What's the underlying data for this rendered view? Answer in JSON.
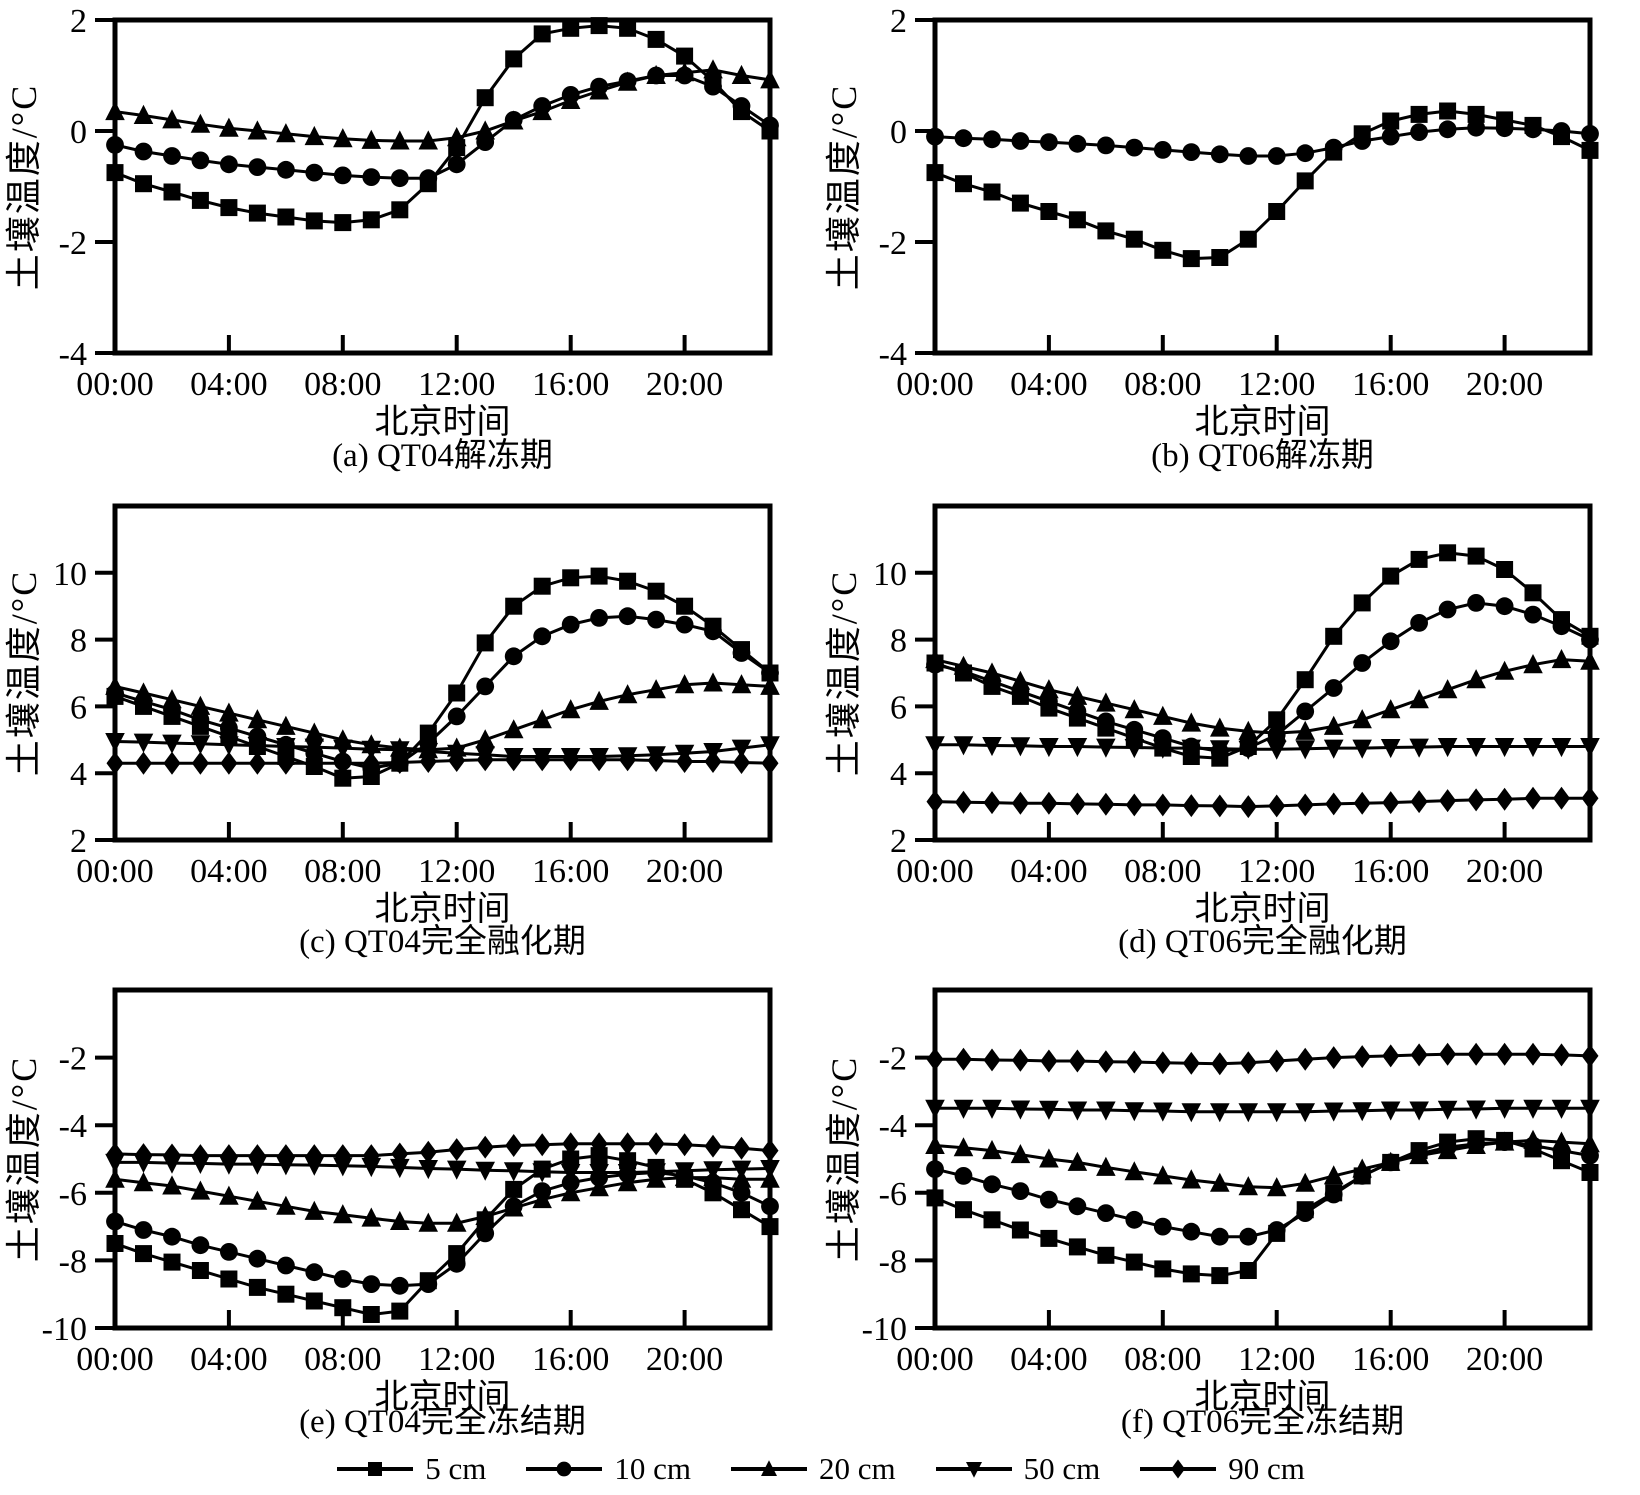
{
  "figure": {
    "background": "#ffffff",
    "ink_color": "#000000",
    "ylabel": "土壤温度/°C",
    "xlabel": "北京时间",
    "legend": [
      {
        "label": "5 cm",
        "marker": "square"
      },
      {
        "label": "10 cm",
        "marker": "circle"
      },
      {
        "label": "20 cm",
        "marker": "triangle-up"
      },
      {
        "label": "50 cm",
        "marker": "triangle-down"
      },
      {
        "label": "90 cm",
        "marker": "diamond"
      }
    ]
  },
  "chart_data": [
    {
      "id": "a",
      "type": "line",
      "title": "(a) QT04解冻期",
      "xlabel": "北京时间",
      "ylabel": "土壤温度/°C",
      "x_unit": "hour",
      "xlim": [
        0,
        23
      ],
      "x_tick_hours": [
        0,
        4,
        8,
        12,
        16,
        20
      ],
      "x_tick_labels": [
        "00:00",
        "04:00",
        "08:00",
        "12:00",
        "16:00",
        "20:00"
      ],
      "ylim": [
        -4,
        2
      ],
      "yticks": [
        2,
        0,
        -2,
        -4
      ],
      "series": [
        {
          "name": "5 cm",
          "marker": "square",
          "values": [
            -0.75,
            -0.95,
            -1.1,
            -1.25,
            -1.38,
            -1.48,
            -1.55,
            -1.62,
            -1.65,
            -1.6,
            -1.42,
            -0.95,
            -0.3,
            0.6,
            1.3,
            1.75,
            1.85,
            1.9,
            1.85,
            1.65,
            1.35,
            0.9,
            0.35,
            0.0
          ]
        },
        {
          "name": "10 cm",
          "marker": "circle",
          "values": [
            -0.25,
            -0.37,
            -0.45,
            -0.53,
            -0.6,
            -0.65,
            -0.7,
            -0.75,
            -0.8,
            -0.83,
            -0.85,
            -0.85,
            -0.6,
            -0.2,
            0.2,
            0.45,
            0.65,
            0.8,
            0.9,
            1.0,
            1.0,
            0.8,
            0.45,
            0.1
          ]
        },
        {
          "name": "20 cm",
          "marker": "triangle-up",
          "values": [
            0.35,
            0.28,
            0.2,
            0.12,
            0.05,
            0.0,
            -0.05,
            -0.1,
            -0.14,
            -0.17,
            -0.18,
            -0.18,
            -0.12,
            0.0,
            0.18,
            0.35,
            0.55,
            0.72,
            0.88,
            1.0,
            1.05,
            1.1,
            1.0,
            0.92
          ]
        }
      ]
    },
    {
      "id": "b",
      "type": "line",
      "title": "(b) QT06解冻期",
      "xlabel": "北京时间",
      "ylabel": "土壤温度/°C",
      "x_unit": "hour",
      "xlim": [
        0,
        23
      ],
      "x_tick_hours": [
        0,
        4,
        8,
        12,
        16,
        20
      ],
      "x_tick_labels": [
        "00:00",
        "04:00",
        "08:00",
        "12:00",
        "16:00",
        "20:00"
      ],
      "ylim": [
        -4,
        2
      ],
      "yticks": [
        2,
        0,
        -2,
        -4
      ],
      "series": [
        {
          "name": "5 cm",
          "marker": "square",
          "values": [
            -0.75,
            -0.95,
            -1.1,
            -1.3,
            -1.45,
            -1.6,
            -1.8,
            -1.95,
            -2.15,
            -2.3,
            -2.28,
            -1.95,
            -1.45,
            -0.9,
            -0.38,
            -0.05,
            0.18,
            0.3,
            0.36,
            0.3,
            0.2,
            0.1,
            -0.1,
            -0.35
          ]
        },
        {
          "name": "10 cm",
          "marker": "circle",
          "values": [
            -0.1,
            -0.13,
            -0.15,
            -0.18,
            -0.2,
            -0.23,
            -0.26,
            -0.3,
            -0.34,
            -0.38,
            -0.42,
            -0.45,
            -0.45,
            -0.4,
            -0.3,
            -0.18,
            -0.1,
            -0.02,
            0.03,
            0.06,
            0.05,
            0.03,
            0.0,
            -0.05
          ]
        }
      ]
    },
    {
      "id": "c",
      "type": "line",
      "title": "(c) QT04完全融化期",
      "xlabel": "北京时间",
      "ylabel": "土壤温度/°C",
      "x_unit": "hour",
      "xlim": [
        0,
        23
      ],
      "x_tick_hours": [
        0,
        4,
        8,
        12,
        16,
        20
      ],
      "x_tick_labels": [
        "00:00",
        "04:00",
        "08:00",
        "12:00",
        "16:00",
        "20:00"
      ],
      "ylim": [
        2,
        12
      ],
      "yticks": [
        10,
        8,
        6,
        4,
        2
      ],
      "series": [
        {
          "name": "5 cm",
          "marker": "square",
          "values": [
            6.3,
            6.0,
            5.7,
            5.4,
            5.1,
            4.8,
            4.5,
            4.2,
            3.85,
            3.9,
            4.3,
            5.2,
            6.4,
            7.9,
            9.0,
            9.6,
            9.85,
            9.9,
            9.75,
            9.45,
            9.0,
            8.4,
            7.7,
            7.0
          ]
        },
        {
          "name": "10 cm",
          "marker": "circle",
          "values": [
            6.4,
            6.15,
            5.9,
            5.6,
            5.35,
            5.1,
            4.85,
            4.6,
            4.35,
            4.15,
            4.3,
            4.9,
            5.7,
            6.6,
            7.5,
            8.1,
            8.45,
            8.65,
            8.7,
            8.6,
            8.45,
            8.25,
            7.6,
            7.0
          ]
        },
        {
          "name": "20 cm",
          "marker": "triangle-up",
          "values": [
            6.6,
            6.4,
            6.2,
            6.0,
            5.8,
            5.6,
            5.4,
            5.2,
            5.0,
            4.85,
            4.75,
            4.7,
            4.75,
            5.0,
            5.3,
            5.6,
            5.9,
            6.15,
            6.35,
            6.5,
            6.65,
            6.7,
            6.65,
            6.6
          ]
        },
        {
          "name": "50 cm",
          "marker": "triangle-down",
          "values": [
            4.95,
            4.93,
            4.9,
            4.88,
            4.85,
            4.83,
            4.8,
            4.78,
            4.75,
            4.72,
            4.7,
            4.65,
            4.6,
            4.55,
            4.5,
            4.5,
            4.5,
            4.5,
            4.52,
            4.55,
            4.6,
            4.65,
            4.75,
            4.85
          ]
        },
        {
          "name": "90 cm",
          "marker": "diamond",
          "values": [
            4.3,
            4.3,
            4.3,
            4.3,
            4.3,
            4.3,
            4.3,
            4.3,
            4.3,
            4.3,
            4.32,
            4.35,
            4.38,
            4.4,
            4.4,
            4.4,
            4.4,
            4.4,
            4.4,
            4.38,
            4.35,
            4.35,
            4.32,
            4.3
          ]
        }
      ]
    },
    {
      "id": "d",
      "type": "line",
      "title": "(d) QT06完全融化期",
      "xlabel": "北京时间",
      "ylabel": "土壤温度/°C",
      "x_unit": "hour",
      "xlim": [
        0,
        23
      ],
      "x_tick_hours": [
        0,
        4,
        8,
        12,
        16,
        20
      ],
      "x_tick_labels": [
        "00:00",
        "04:00",
        "08:00",
        "12:00",
        "16:00",
        "20:00"
      ],
      "ylim": [
        2,
        12
      ],
      "yticks": [
        10,
        8,
        6,
        4,
        2
      ],
      "series": [
        {
          "name": "5 cm",
          "marker": "square",
          "values": [
            7.3,
            7.0,
            6.6,
            6.3,
            5.95,
            5.65,
            5.35,
            5.05,
            4.75,
            4.5,
            4.45,
            4.8,
            5.6,
            6.8,
            8.1,
            9.1,
            9.9,
            10.4,
            10.6,
            10.5,
            10.1,
            9.4,
            8.6,
            8.1
          ]
        },
        {
          "name": "10 cm",
          "marker": "circle",
          "values": [
            7.25,
            7.05,
            6.75,
            6.45,
            6.15,
            5.85,
            5.55,
            5.3,
            5.05,
            4.8,
            4.65,
            4.75,
            5.15,
            5.85,
            6.55,
            7.3,
            7.95,
            8.5,
            8.9,
            9.1,
            9.0,
            8.75,
            8.4,
            8.0
          ]
        },
        {
          "name": "20 cm",
          "marker": "triangle-up",
          "values": [
            7.4,
            7.2,
            7.0,
            6.75,
            6.5,
            6.3,
            6.1,
            5.9,
            5.7,
            5.5,
            5.35,
            5.25,
            5.2,
            5.25,
            5.4,
            5.6,
            5.9,
            6.2,
            6.5,
            6.8,
            7.05,
            7.25,
            7.4,
            7.35
          ]
        },
        {
          "name": "50 cm",
          "marker": "triangle-down",
          "values": [
            4.85,
            4.85,
            4.83,
            4.82,
            4.8,
            4.8,
            4.78,
            4.77,
            4.75,
            4.75,
            4.73,
            4.72,
            4.72,
            4.73,
            4.75,
            4.75,
            4.77,
            4.78,
            4.8,
            4.8,
            4.8,
            4.8,
            4.8,
            4.8
          ]
        },
        {
          "name": "90 cm",
          "marker": "diamond",
          "values": [
            3.15,
            3.13,
            3.12,
            3.1,
            3.1,
            3.08,
            3.07,
            3.05,
            3.05,
            3.03,
            3.02,
            3.0,
            3.02,
            3.05,
            3.08,
            3.1,
            3.12,
            3.15,
            3.18,
            3.2,
            3.22,
            3.25,
            3.25,
            3.25
          ]
        }
      ]
    },
    {
      "id": "e",
      "type": "line",
      "title": "(e) QT04完全冻结期",
      "xlabel": "北京时间",
      "ylabel": "土壤温度/°C",
      "x_unit": "hour",
      "xlim": [
        0,
        23
      ],
      "x_tick_hours": [
        0,
        4,
        8,
        12,
        16,
        20
      ],
      "x_tick_labels": [
        "00:00",
        "04:00",
        "08:00",
        "12:00",
        "16:00",
        "20:00"
      ],
      "ylim": [
        -10,
        0
      ],
      "yticks": [
        -2,
        -4,
        -6,
        -8,
        -10
      ],
      "series": [
        {
          "name": "5 cm",
          "marker": "square",
          "values": [
            -7.5,
            -7.8,
            -8.05,
            -8.3,
            -8.55,
            -8.8,
            -9.0,
            -9.2,
            -9.4,
            -9.6,
            -9.5,
            -8.6,
            -7.8,
            -6.8,
            -5.9,
            -5.3,
            -5.0,
            -4.9,
            -5.05,
            -5.25,
            -5.6,
            -6.0,
            -6.5,
            -7.0
          ]
        },
        {
          "name": "10 cm",
          "marker": "circle",
          "values": [
            -6.85,
            -7.1,
            -7.3,
            -7.55,
            -7.75,
            -7.95,
            -8.15,
            -8.35,
            -8.55,
            -8.7,
            -8.75,
            -8.7,
            -8.1,
            -7.2,
            -6.4,
            -5.95,
            -5.7,
            -5.55,
            -5.45,
            -5.4,
            -5.5,
            -5.7,
            -6.0,
            -6.4
          ]
        },
        {
          "name": "20 cm",
          "marker": "triangle-up",
          "values": [
            -5.6,
            -5.7,
            -5.8,
            -5.95,
            -6.1,
            -6.25,
            -6.4,
            -6.55,
            -6.65,
            -6.75,
            -6.85,
            -6.9,
            -6.9,
            -6.7,
            -6.45,
            -6.2,
            -6.0,
            -5.85,
            -5.7,
            -5.6,
            -5.55,
            -5.55,
            -5.6,
            -5.6
          ]
        },
        {
          "name": "50 cm",
          "marker": "triangle-down",
          "values": [
            -5.1,
            -5.1,
            -5.12,
            -5.13,
            -5.15,
            -5.15,
            -5.17,
            -5.18,
            -5.2,
            -5.22,
            -5.25,
            -5.28,
            -5.3,
            -5.33,
            -5.35,
            -5.38,
            -5.4,
            -5.4,
            -5.4,
            -5.38,
            -5.35,
            -5.32,
            -5.3,
            -5.28
          ]
        },
        {
          "name": "90 cm",
          "marker": "diamond",
          "values": [
            -4.85,
            -4.87,
            -4.88,
            -4.9,
            -4.9,
            -4.9,
            -4.9,
            -4.9,
            -4.9,
            -4.9,
            -4.85,
            -4.8,
            -4.72,
            -4.65,
            -4.6,
            -4.58,
            -4.55,
            -4.55,
            -4.55,
            -4.55,
            -4.58,
            -4.62,
            -4.68,
            -4.75
          ]
        }
      ]
    },
    {
      "id": "f",
      "type": "line",
      "title": "(f) QT06完全冻结期",
      "xlabel": "北京时间",
      "ylabel": "土壤温度/°C",
      "x_unit": "hour",
      "xlim": [
        0,
        23
      ],
      "x_tick_hours": [
        0,
        4,
        8,
        12,
        16,
        20
      ],
      "x_tick_labels": [
        "00:00",
        "04:00",
        "08:00",
        "12:00",
        "16:00",
        "20:00"
      ],
      "ylim": [
        -10,
        0
      ],
      "yticks": [
        -2,
        -4,
        -6,
        -8,
        -10
      ],
      "series": [
        {
          "name": "5 cm",
          "marker": "square",
          "values": [
            -6.15,
            -6.5,
            -6.8,
            -7.1,
            -7.35,
            -7.6,
            -7.85,
            -8.05,
            -8.25,
            -8.4,
            -8.45,
            -8.3,
            -7.2,
            -6.5,
            -6.0,
            -5.5,
            -5.1,
            -4.75,
            -4.5,
            -4.4,
            -4.45,
            -4.7,
            -5.05,
            -5.4
          ]
        },
        {
          "name": "10 cm",
          "marker": "circle",
          "values": [
            -5.3,
            -5.5,
            -5.75,
            -5.95,
            -6.2,
            -6.4,
            -6.6,
            -6.8,
            -7.0,
            -7.15,
            -7.3,
            -7.3,
            -7.1,
            -6.6,
            -6.05,
            -5.5,
            -5.1,
            -4.85,
            -4.65,
            -4.55,
            -4.5,
            -4.6,
            -4.75,
            -4.9
          ]
        },
        {
          "name": "20 cm",
          "marker": "triangle-up",
          "values": [
            -4.6,
            -4.67,
            -4.75,
            -4.87,
            -5.0,
            -5.1,
            -5.25,
            -5.38,
            -5.5,
            -5.62,
            -5.72,
            -5.82,
            -5.85,
            -5.72,
            -5.5,
            -5.3,
            -5.1,
            -4.9,
            -4.75,
            -4.6,
            -4.5,
            -4.45,
            -4.5,
            -4.55
          ]
        },
        {
          "name": "50 cm",
          "marker": "triangle-down",
          "values": [
            -3.5,
            -3.5,
            -3.5,
            -3.52,
            -3.53,
            -3.55,
            -3.55,
            -3.57,
            -3.58,
            -3.6,
            -3.6,
            -3.6,
            -3.6,
            -3.6,
            -3.58,
            -3.57,
            -3.55,
            -3.55,
            -3.53,
            -3.52,
            -3.5,
            -3.5,
            -3.5,
            -3.5
          ]
        },
        {
          "name": "90 cm",
          "marker": "diamond",
          "values": [
            -2.05,
            -2.05,
            -2.07,
            -2.08,
            -2.1,
            -2.1,
            -2.12,
            -2.13,
            -2.15,
            -2.17,
            -2.18,
            -2.15,
            -2.1,
            -2.05,
            -2.0,
            -1.97,
            -1.95,
            -1.92,
            -1.9,
            -1.9,
            -1.9,
            -1.9,
            -1.92,
            -1.95
          ]
        }
      ]
    }
  ]
}
